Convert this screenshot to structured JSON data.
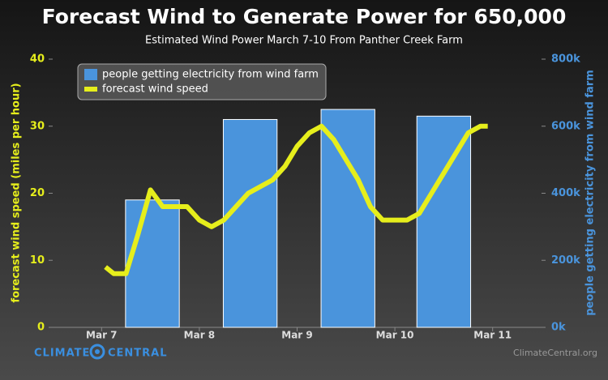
{
  "chart_data": {
    "type": "bar-line",
    "title": "Forecast Wind to Generate Power for 650,000",
    "subtitle": "Estimated Wind Power March 7-10 From Panther Creek Farm",
    "ylabel": "forecast wind speed (miles per hour)",
    "y2label": "people getting electricity from wind farm",
    "source": "ClimateCentral.org",
    "logo": [
      "CLIMATE",
      "CENTRAL"
    ],
    "xlim": [
      6.5,
      11.5
    ],
    "xticks": [
      {
        "value": 7,
        "label": "Mar 7"
      },
      {
        "value": 8,
        "label": "Mar 8"
      },
      {
        "value": 9,
        "label": "Mar 9"
      },
      {
        "value": 10,
        "label": "Mar 10"
      },
      {
        "value": 11,
        "label": "Mar 11"
      }
    ],
    "ylim": [
      0,
      40
    ],
    "yticks": [
      0,
      10,
      20,
      30,
      40
    ],
    "y2lim": [
      0,
      800000
    ],
    "y2ticks": [
      {
        "value": 0,
        "label": "0k"
      },
      {
        "value": 200000,
        "label": "200k"
      },
      {
        "value": 400000,
        "label": "400k"
      },
      {
        "value": 600000,
        "label": "600k"
      },
      {
        "value": 800000,
        "label": "800k"
      }
    ],
    "legend": "upper left",
    "series": [
      {
        "name": "people getting electricity from wind farm",
        "type": "bar",
        "axis": "y2",
        "color": "#4a94dc",
        "x": [
          7.52,
          8.52,
          9.52,
          10.5
        ],
        "values": [
          380000,
          620000,
          650000,
          630000
        ]
      },
      {
        "name": "forecast wind speed",
        "type": "line",
        "axis": "y",
        "color": "#e6ee1c",
        "x": [
          7.04,
          7.125,
          7.25,
          7.375,
          7.5,
          7.625,
          7.75,
          7.875,
          8.0,
          8.125,
          8.25,
          8.375,
          8.5,
          8.625,
          8.75,
          8.875,
          9.0,
          9.125,
          9.25,
          9.375,
          9.5,
          9.625,
          9.75,
          9.875,
          10.0,
          10.125,
          10.25,
          10.375,
          10.5,
          10.625,
          10.75,
          10.875,
          10.95
        ],
        "values": [
          9,
          8,
          8,
          14,
          20.5,
          18,
          18,
          18,
          16,
          15,
          16,
          18,
          20,
          21,
          22,
          24,
          27,
          29,
          30,
          28,
          25,
          22,
          18,
          16,
          16,
          16,
          17,
          20,
          23,
          26,
          29,
          30,
          30
        ]
      }
    ]
  }
}
